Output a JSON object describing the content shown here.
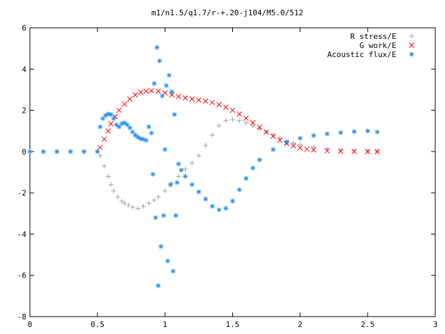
{
  "chart_data": {
    "type": "scatter",
    "title": "m1/n1.5/q1.7/r-+.20-j104/M5.0/512",
    "xlabel": "",
    "ylabel": "",
    "xlim": [
      0,
      3
    ],
    "ylim": [
      -8,
      6
    ],
    "xticks": [
      0,
      0.5,
      1,
      1.5,
      2,
      2.5,
      3
    ],
    "yticks": [
      -8,
      -6,
      -4,
      -2,
      0,
      2,
      4,
      6
    ],
    "xtick_labels": [
      "0",
      "0.5",
      "1",
      "1.5",
      "2",
      "2.5",
      "3"
    ],
    "ytick_labels": [
      "-8",
      "-6",
      "-4",
      "-2",
      "0",
      "2",
      "4",
      "6"
    ],
    "grid": false,
    "legend_position": "top-right",
    "series": [
      {
        "name": "R stress/E",
        "marker": "plus",
        "color": "#a0a0a0",
        "x": [
          0.0,
          0.1,
          0.2,
          0.3,
          0.4,
          0.5,
          0.52,
          0.55,
          0.58,
          0.6,
          0.62,
          0.65,
          0.68,
          0.7,
          0.73,
          0.76,
          0.8,
          0.84,
          0.88,
          0.92,
          0.95,
          1.0,
          1.05,
          1.1,
          1.15,
          1.2,
          1.25,
          1.3,
          1.35,
          1.4,
          1.45,
          1.5,
          1.55,
          1.6,
          1.65,
          1.7,
          1.75,
          1.8,
          1.85,
          1.9,
          1.95,
          2.0,
          2.1,
          2.2,
          2.3,
          2.4,
          2.5,
          2.57
        ],
        "y": [
          0.0,
          0.0,
          0.0,
          0.0,
          0.0,
          0.0,
          -0.2,
          -0.7,
          -1.2,
          -1.6,
          -1.9,
          -2.2,
          -2.4,
          -2.5,
          -2.6,
          -2.7,
          -2.75,
          -2.65,
          -2.5,
          -2.35,
          -2.2,
          -1.9,
          -1.55,
          -1.2,
          -0.85,
          -0.55,
          -0.2,
          0.3,
          0.8,
          1.25,
          1.5,
          1.55,
          1.5,
          1.4,
          1.25,
          1.1,
          0.95,
          0.8,
          0.65,
          0.52,
          0.42,
          0.35,
          0.22,
          0.13,
          0.08,
          0.05,
          0.03,
          0.02
        ]
      },
      {
        "name": "G work/E",
        "marker": "cross",
        "color": "#ff0000",
        "x": [
          0.52,
          0.55,
          0.58,
          0.6,
          0.63,
          0.66,
          0.7,
          0.74,
          0.78,
          0.82,
          0.86,
          0.9,
          0.95,
          1.0,
          1.05,
          1.1,
          1.15,
          1.2,
          1.25,
          1.3,
          1.35,
          1.4,
          1.45,
          1.5,
          1.55,
          1.6,
          1.65,
          1.7,
          1.75,
          1.8,
          1.85,
          1.9,
          1.95,
          2.0,
          2.05,
          2.1,
          2.2,
          2.3,
          2.4,
          2.5,
          2.57
        ],
        "y": [
          0.2,
          0.6,
          1.0,
          1.35,
          1.7,
          2.0,
          2.3,
          2.55,
          2.75,
          2.88,
          2.93,
          2.95,
          2.93,
          2.85,
          2.75,
          2.67,
          2.6,
          2.55,
          2.5,
          2.45,
          2.38,
          2.28,
          2.15,
          2.0,
          1.82,
          1.62,
          1.4,
          1.18,
          0.95,
          0.75,
          0.55,
          0.4,
          0.28,
          0.18,
          0.12,
          0.08,
          0.04,
          0.02,
          0.01,
          0.0,
          0.0
        ]
      },
      {
        "name": "Acoustic flux/E",
        "marker": "star",
        "color": "#1e8cf0",
        "x": [
          0.0,
          0.1,
          0.2,
          0.3,
          0.4,
          0.5,
          0.52,
          0.54,
          0.56,
          0.58,
          0.6,
          0.62,
          0.64,
          0.66,
          0.68,
          0.7,
          0.72,
          0.74,
          0.76,
          0.78,
          0.8,
          0.82,
          0.84,
          0.86,
          0.88,
          0.9,
          0.91,
          0.92,
          0.93,
          0.94,
          0.95,
          0.96,
          0.97,
          0.98,
          0.99,
          1.0,
          1.01,
          1.02,
          1.03,
          1.04,
          1.05,
          1.06,
          1.07,
          1.08,
          1.09,
          1.1,
          1.12,
          1.15,
          1.2,
          1.25,
          1.3,
          1.35,
          1.4,
          1.45,
          1.5,
          1.55,
          1.6,
          1.65,
          1.7,
          1.8,
          1.9,
          2.0,
          2.1,
          2.2,
          2.3,
          2.4,
          2.5,
          2.57
        ],
        "y": [
          0.0,
          0.0,
          0.0,
          0.0,
          0.0,
          0.0,
          1.2,
          1.6,
          1.75,
          1.82,
          1.8,
          1.6,
          1.3,
          1.2,
          1.35,
          1.4,
          1.3,
          1.15,
          0.95,
          0.8,
          0.7,
          0.62,
          0.6,
          0.55,
          1.2,
          0.9,
          -1.1,
          3.3,
          -3.2,
          5.05,
          -6.5,
          4.4,
          -4.6,
          2.7,
          -3.1,
          0.1,
          3.2,
          -5.3,
          3.7,
          -1.6,
          2.9,
          -5.8,
          1.8,
          -3.1,
          -1.5,
          -0.6,
          -0.9,
          -1.2,
          -1.6,
          -1.95,
          -2.3,
          -2.65,
          -2.82,
          -2.75,
          -2.4,
          -1.85,
          -1.3,
          -0.8,
          -0.4,
          0.1,
          0.45,
          0.65,
          0.78,
          0.86,
          0.92,
          0.97,
          1.0,
          0.95
        ]
      }
    ]
  }
}
